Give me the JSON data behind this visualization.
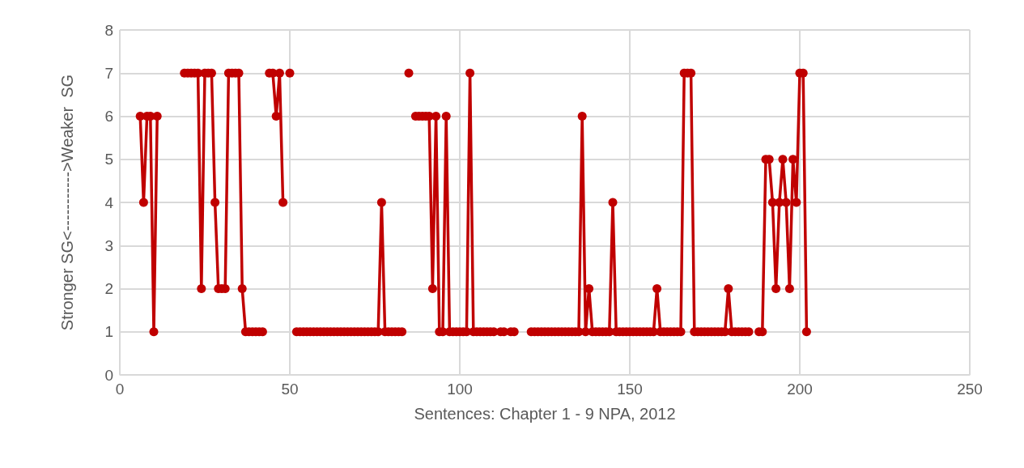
{
  "chart_data": {
    "type": "line",
    "xlabel": "Sentences: Chapter 1 - 9 NPA, 2012",
    "ylabel": "Stronger SG<----------->Weaker  SG",
    "x": [
      6,
      7,
      8,
      9,
      10,
      11,
      12,
      13,
      14,
      15,
      16,
      17,
      18,
      19,
      20,
      21,
      22,
      23,
      24,
      25,
      26,
      27,
      28,
      29,
      30,
      31,
      32,
      33,
      34,
      35,
      36,
      37,
      38,
      39,
      40,
      41,
      42,
      43,
      44,
      45,
      46,
      47,
      48,
      49,
      50,
      51,
      52,
      53,
      54,
      55,
      56,
      57,
      58,
      59,
      60,
      61,
      62,
      63,
      64,
      65,
      66,
      67,
      68,
      69,
      70,
      71,
      72,
      73,
      74,
      75,
      76,
      77,
      78,
      79,
      80,
      81,
      82,
      83,
      84,
      85,
      86,
      87,
      88,
      89,
      90,
      91,
      92,
      93,
      94,
      95,
      96,
      97,
      98,
      99,
      100,
      101,
      102,
      103,
      104,
      105,
      106,
      107,
      108,
      109,
      110,
      111,
      112,
      113,
      114,
      115,
      116,
      117,
      118,
      119,
      120,
      121,
      122,
      123,
      124,
      125,
      126,
      127,
      128,
      129,
      130,
      131,
      132,
      133,
      134,
      135,
      136,
      137,
      138,
      139,
      140,
      141,
      142,
      143,
      144,
      145,
      146,
      147,
      148,
      149,
      150,
      151,
      152,
      153,
      154,
      155,
      156,
      157,
      158,
      159,
      160,
      161,
      162,
      163,
      164,
      165,
      166,
      167,
      168,
      169,
      170,
      171,
      172,
      173,
      174,
      175,
      176,
      177,
      178,
      179,
      180,
      181,
      182,
      183,
      184,
      185,
      186,
      187,
      188,
      189,
      190,
      191,
      192,
      193,
      194,
      195,
      196,
      197,
      198,
      199,
      200,
      201,
      202
    ],
    "series": [
      {
        "color": "#c00000",
        "values": [
          6,
          4,
          6,
          6,
          1,
          6,
          null,
          null,
          null,
          null,
          null,
          null,
          null,
          7,
          7,
          7,
          7,
          7,
          2,
          7,
          7,
          7,
          4,
          2,
          2,
          2,
          7,
          7,
          7,
          7,
          2,
          1,
          1,
          1,
          1,
          1,
          1,
          null,
          7,
          7,
          6,
          7,
          4,
          null,
          7,
          null,
          1,
          1,
          1,
          1,
          1,
          1,
          1,
          1,
          1,
          1,
          1,
          1,
          1,
          1,
          1,
          1,
          1,
          1,
          1,
          1,
          1,
          1,
          1,
          1,
          1,
          4,
          1,
          1,
          1,
          1,
          1,
          1,
          null,
          7,
          null,
          6,
          6,
          6,
          6,
          6,
          2,
          6,
          1,
          1,
          6,
          1,
          1,
          1,
          1,
          1,
          1,
          7,
          1,
          1,
          1,
          1,
          1,
          1,
          1,
          null,
          1,
          1,
          null,
          1,
          1,
          null,
          null,
          null,
          null,
          1,
          1,
          1,
          1,
          1,
          1,
          1,
          1,
          1,
          1,
          1,
          1,
          1,
          1,
          1,
          6,
          1,
          2,
          1,
          1,
          1,
          1,
          1,
          1,
          4,
          1,
          1,
          1,
          1,
          1,
          1,
          1,
          1,
          1,
          1,
          1,
          1,
          2,
          1,
          1,
          1,
          1,
          1,
          1,
          1,
          7,
          7,
          7,
          1,
          1,
          1,
          1,
          1,
          1,
          1,
          1,
          1,
          1,
          2,
          1,
          1,
          1,
          1,
          1,
          1,
          null,
          null,
          1,
          1,
          5,
          5,
          4,
          2,
          4,
          5,
          4,
          2,
          5,
          4,
          7,
          7,
          1
        ]
      }
    ],
    "xlim": [
      0,
      250
    ],
    "xticks": [
      0,
      50,
      100,
      150,
      200,
      250
    ],
    "ylim": [
      0,
      8
    ],
    "yticks": [
      0,
      1,
      2,
      3,
      4,
      5,
      6,
      7,
      8
    ],
    "grid": true,
    "marker": "circle",
    "line_style": "solid"
  }
}
